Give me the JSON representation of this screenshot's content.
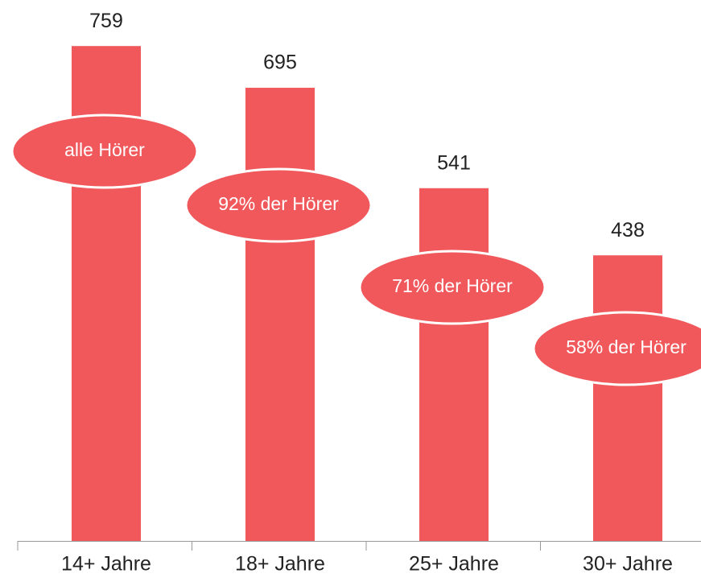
{
  "chart_data": {
    "type": "bar",
    "categories": [
      "14+ Jahre",
      "18+ Jahre",
      "25+ Jahre",
      "30+ Jahre"
    ],
    "values": [
      759,
      695,
      541,
      438
    ],
    "annotations": [
      "alle Hörer",
      "92% der Hörer",
      "71% der Hörer",
      "58% der Hörer"
    ],
    "color": "#f0585b",
    "ylim": [
      0,
      800
    ]
  }
}
